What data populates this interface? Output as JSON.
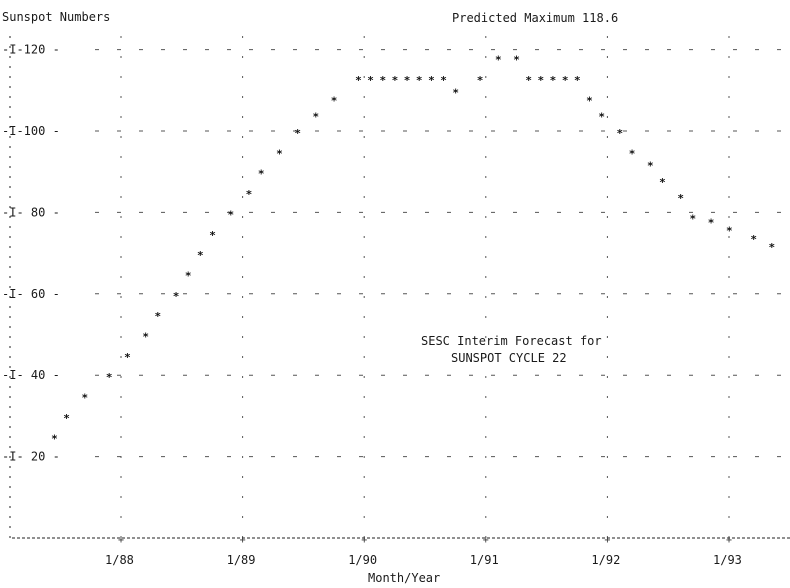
{
  "chart_data": {
    "type": "scatter",
    "title": "Sunspot Numbers",
    "annotation_top": "Predicted Maximum 118.6",
    "annotation_mid": [
      "SESC Interim Forecast for",
      "SUNSPOT CYCLE 22"
    ],
    "xlabel": "Month/Year",
    "xticks": [
      "1/88",
      "1/89",
      "1/90",
      "1/91",
      "1/92",
      "1/93"
    ],
    "yticks": [
      "120",
      "100",
      "80",
      "60",
      "40",
      "20"
    ],
    "ylim": [
      0,
      128
    ],
    "xlim": [
      1987.3,
      1993.5
    ],
    "grid": true,
    "series": [
      {
        "marker": "*",
        "x": [
          1987.45,
          1987.55,
          1987.7,
          1987.9,
          1988.05,
          1988.2,
          1988.3,
          1988.45,
          1988.55,
          1988.65,
          1988.75,
          1988.9,
          1989.05,
          1989.15,
          1989.3,
          1989.45,
          1989.6,
          1989.75,
          1989.95,
          1990.05,
          1990.15,
          1990.25,
          1990.35,
          1990.45,
          1990.55,
          1990.65,
          1990.75,
          1990.95,
          1991.1,
          1991.25,
          1991.35,
          1991.45,
          1991.55,
          1991.65,
          1991.75,
          1991.85,
          1991.95,
          1992.1,
          1992.2,
          1992.35,
          1992.45,
          1992.6,
          1992.7,
          1992.85,
          1993.0,
          1993.2,
          1993.35
        ],
        "y": [
          25,
          30,
          35,
          40,
          45,
          50,
          55,
          60,
          65,
          70,
          75,
          80,
          85,
          90,
          95,
          100,
          104,
          108,
          113,
          113,
          113,
          113,
          113,
          113,
          113,
          113,
          110,
          113,
          118,
          118,
          113,
          113,
          113,
          113,
          113,
          108,
          104,
          100,
          95,
          92,
          88,
          84,
          79,
          78,
          76,
          74,
          72
        ]
      }
    ]
  }
}
